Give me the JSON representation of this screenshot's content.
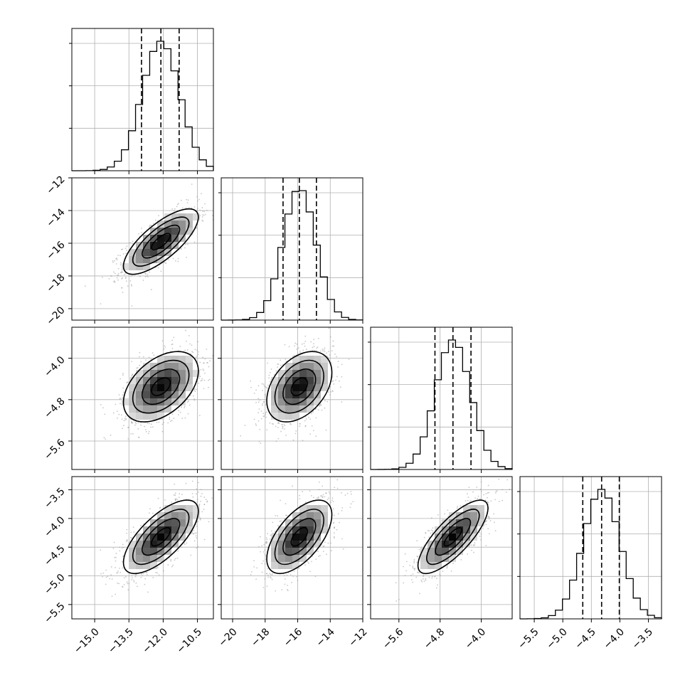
{
  "chart_data": {
    "type": "corner",
    "title": "",
    "n_params": 4,
    "parameters": [
      {
        "index": 0,
        "median": -12.1,
        "q16": -12.95,
        "q84": -11.3,
        "sigma": 0.82,
        "range": [
          -16.0,
          -9.8
        ],
        "ticks": [
          -15.0,
          -13.5,
          -12.0,
          -10.5
        ],
        "tick_labels": [
          "−15.0",
          "−13.5",
          "−12.0",
          "−10.5"
        ]
      },
      {
        "index": 1,
        "median": -15.9,
        "q16": -16.9,
        "q84": -14.85,
        "sigma": 1.0,
        "range": [
          -20.7,
          -12.0
        ],
        "ticks": [
          -20,
          -18,
          -16,
          -14,
          -12
        ],
        "tick_labels": [
          "−20",
          "−18",
          "−16",
          "−14",
          "−12"
        ]
      },
      {
        "index": 2,
        "median": -4.55,
        "q16": -4.9,
        "q84": -4.2,
        "sigma": 0.34,
        "range": [
          -6.15,
          -3.4
        ],
        "ticks": [
          -5.6,
          -4.8,
          -4.0
        ],
        "tick_labels": [
          "−5.6",
          "−4.8",
          "−4.0"
        ]
      },
      {
        "index": 3,
        "median": -4.32,
        "q16": -4.65,
        "q84": -4.01,
        "sigma": 0.32,
        "range": [
          -5.75,
          -3.27
        ],
        "ticks": [
          -5.5,
          -5.0,
          -4.5,
          -4.0,
          -3.5
        ],
        "tick_labels": [
          "−5.5",
          "−5.0",
          "−4.5",
          "−4.0",
          "−3.5"
        ]
      }
    ],
    "correlations": [
      {
        "pair": [
          0,
          1
        ],
        "rho": 0.75
      },
      {
        "pair": [
          0,
          2
        ],
        "rho": 0.45
      },
      {
        "pair": [
          1,
          2
        ],
        "rho": 0.4
      },
      {
        "pair": [
          0,
          3
        ],
        "rho": 0.7
      },
      {
        "pair": [
          1,
          3
        ],
        "rho": 0.6
      },
      {
        "pair": [
          2,
          3
        ],
        "rho": 0.78
      }
    ],
    "hist_bins": 20,
    "sample_points_per_panel": 1300,
    "hist_ytick_count": 3,
    "contour_levels_sigma": [
      0.5,
      1.0,
      1.5,
      2.0
    ],
    "grid": true,
    "quantiles": [
      0.16,
      0.5,
      0.84
    ]
  }
}
